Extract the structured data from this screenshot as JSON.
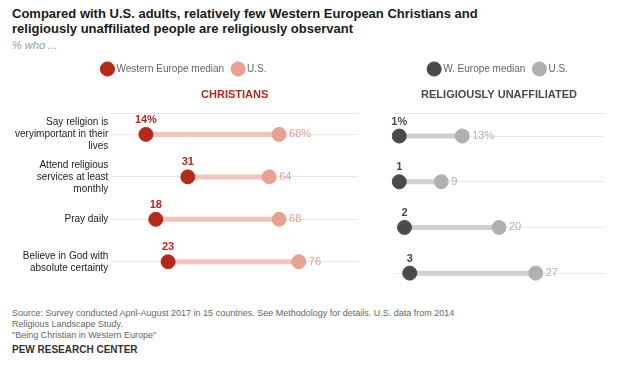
{
  "chart_data": [
    {
      "type": "dumbbell",
      "title": [
        "Compared with U.S. adults, relatively few Western European Christians and",
        "religiously unaffiliated people are religiously observant"
      ],
      "subtitle": "% who ...",
      "x_label": "CHRISTIANS",
      "categories": [
        "Say religion is veryimportant in their lives",
        "Attend religious services at least monthly",
        "Pray daily",
        "Believe in God with absolute certainty"
      ],
      "series": [
        {
          "name": "Western Europe median",
          "color": "#b5291c",
          "values": [
            14,
            31,
            18,
            23
          ],
          "value_labels": [
            "14%",
            "31",
            "18",
            "23"
          ]
        },
        {
          "name": "U.S.",
          "color": "#e8a090",
          "values": [
            68,
            64,
            68,
            76
          ],
          "value_labels": [
            "68%",
            "64",
            "68",
            "76"
          ]
        }
      ],
      "color": "#f2c4bc",
      "xlim": [
        0,
        100
      ],
      "grid": true,
      "legend": "top",
      "data_labels": true,
      "tick_labels": "y"
    },
    {
      "type": "dumbbell",
      "x_label": "RELIGIOUSLY UNAFFILIATED",
      "categories": [
        "Say religion is veryimportant in their lives",
        "Attend religious services at least monthly",
        "Pray daily",
        "Believe in God with absolute certainty"
      ],
      "series": [
        {
          "name": "W. Europe median",
          "color": "#4a4a4a",
          "values": [
            1,
            1,
            2,
            3
          ],
          "value_labels": [
            "1%",
            "1",
            "2",
            "3"
          ]
        },
        {
          "name": "U.S.",
          "color": "#b0b0b0",
          "values": [
            13,
            9,
            20,
            27
          ],
          "value_labels": [
            "13%",
            "9",
            "20",
            "27"
          ]
        }
      ],
      "color": "#d0d0d0",
      "xlim": [
        0,
        40
      ],
      "grid": true,
      "legend": "top",
      "data_labels": true,
      "tick_labels": false,
      "annotations": [
        "Source: Survey conducted April-August 2017 in 15 countries. See Methodology for details. U.S. data from 2014\nReligious Landscape Study.\n\"Being Christian in Western Europe\"",
        "PEW RESEARCH CENTER"
      ]
    }
  ]
}
